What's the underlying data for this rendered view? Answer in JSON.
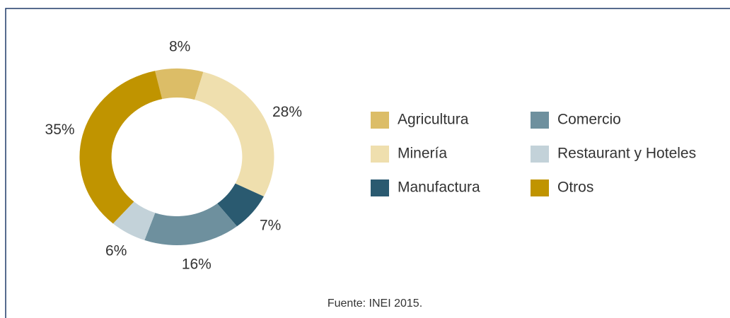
{
  "chart_data": {
    "type": "donut",
    "categories": [
      "Agricultura",
      "Minería",
      "Manufactura",
      "Comercio",
      "Restaurant y Hoteles",
      "Otros"
    ],
    "values": [
      8,
      28,
      7,
      16,
      6,
      35
    ],
    "value_labels": [
      "8%",
      "28%",
      "7%",
      "16%",
      "6%",
      "35%"
    ],
    "colors": [
      "#dcbd67",
      "#efdfae",
      "#2a5a70",
      "#6e909e",
      "#c3d2d9",
      "#c09400"
    ],
    "source": "Fuente: INEI 2015."
  }
}
